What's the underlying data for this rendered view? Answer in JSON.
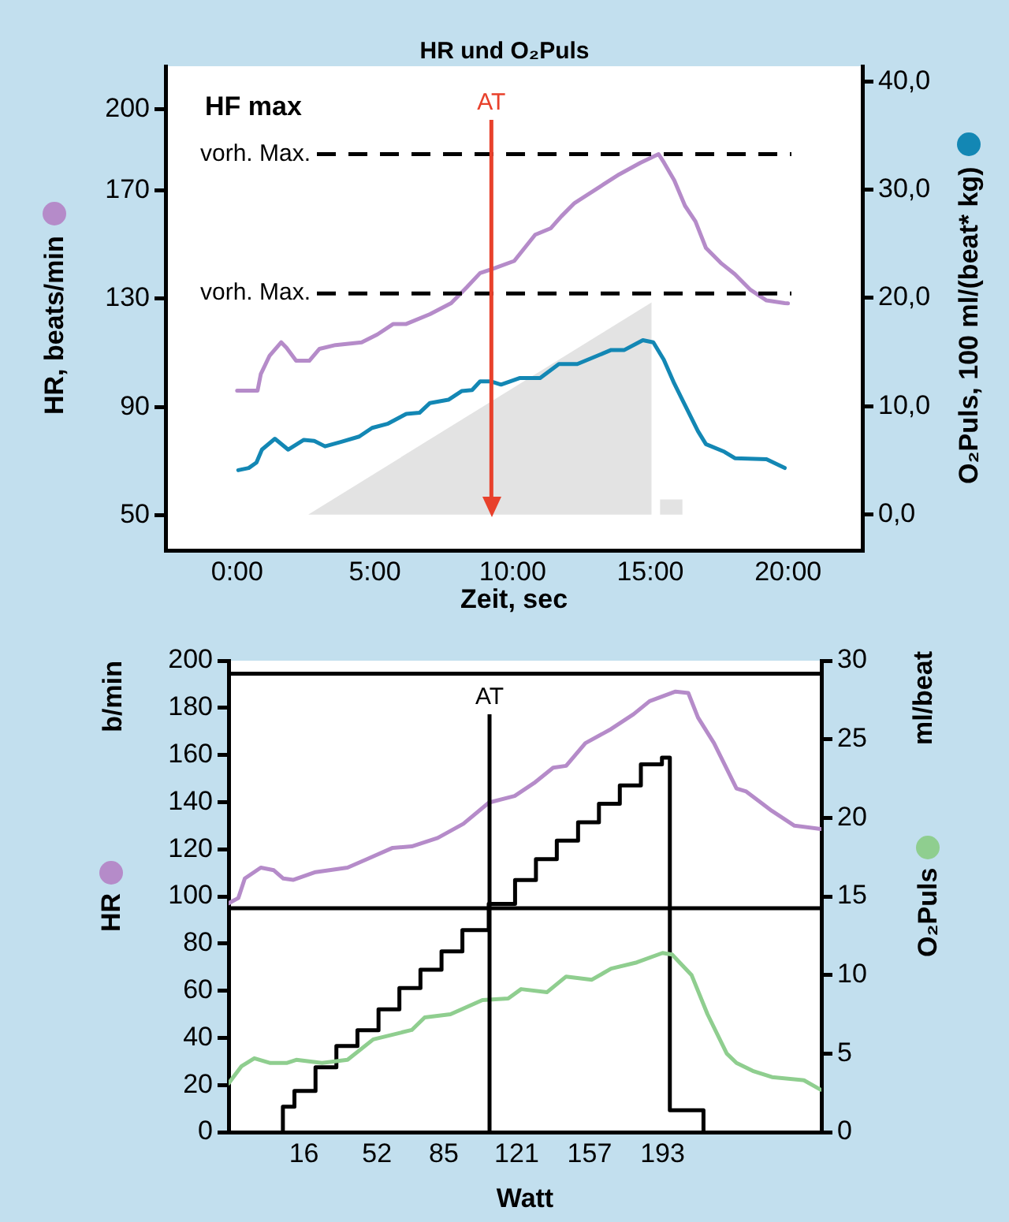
{
  "chart_data": [
    {
      "type": "line",
      "title": "HR und O₂Puls",
      "xlabel": "Zeit, sec",
      "ylabel": "HR, beats/min",
      "y2label": "O₂Puls, 100 ml/(beat* kg)",
      "annotations": [
        "HF max"
      ],
      "xlim": [
        -2.6,
        22.7
      ],
      "xticks": [
        {
          "value": 0,
          "label": "0:00"
        },
        {
          "value": 5,
          "label": "5:00"
        },
        {
          "value": 10,
          "label": "10:00"
        },
        {
          "value": 15,
          "label": "15:00"
        },
        {
          "value": 20,
          "label": "20:00"
        }
      ],
      "ylim": [
        37,
        216
      ],
      "yticks": [
        50,
        90,
        130,
        170,
        200
      ],
      "y2lim": [
        -3.3,
        41.4
      ],
      "y2ticks": [
        {
          "value": 0,
          "label": "0,0"
        },
        {
          "value": 10,
          "label": "10,0"
        },
        {
          "value": 20,
          "label": "20,0"
        },
        {
          "value": 30,
          "label": "30,0"
        },
        {
          "value": 40,
          "label": "40,0"
        }
      ],
      "series": [
        {
          "type": "area",
          "axis": "y2",
          "color": "#e3e3e3",
          "x": [
            2.58,
            15.05,
            15.05,
            15.2,
            15.35,
            15.35,
            16.17,
            16.17
          ],
          "values": [
            0,
            19.6,
            0,
            null,
            0,
            1.4,
            1.4,
            0
          ]
        },
        {
          "color": "#b58bc9",
          "x": [
            0,
            0.74,
            0.86,
            1.18,
            1.6,
            1.79,
            2.14,
            2.62,
            2.99,
            3.57,
            4.52,
            5.09,
            5.67,
            6.14,
            7.0,
            7.77,
            8.34,
            8.82,
            9.29,
            10.06,
            10.82,
            11.39,
            11.77,
            12.25,
            13.3,
            13.87,
            14.64,
            15.3,
            15.5,
            15.87,
            16.26,
            16.64,
            17.02,
            17.59,
            18.07,
            18.64,
            19.22,
            19.88,
            20
          ],
          "values": [
            96,
            96,
            102.2,
            109,
            113.9,
            111.9,
            107.1,
            107.1,
            111.5,
            112.9,
            113.9,
            116.8,
            120.7,
            120.7,
            124.3,
            128.4,
            134.3,
            139.5,
            141.1,
            144,
            153.7,
            156.1,
            160.5,
            165.4,
            172.3,
            176,
            180.3,
            183.5,
            180.3,
            173.8,
            164.4,
            158.6,
            148.8,
            143,
            139.1,
            133.3,
            129.4,
            128.4,
            128.3
          ]
        },
        {
          "axis": "y2",
          "color": "#1387b4",
          "x": [
            0.04,
            0.42,
            0.7,
            0.9,
            1.37,
            1.85,
            2.42,
            2.8,
            3.19,
            3.76,
            4.43,
            4.9,
            5.48,
            6.14,
            6.62,
            7.0,
            7.67,
            8.15,
            8.53,
            8.82,
            9.2,
            9.58,
            10.25,
            11.0,
            11.68,
            12.35,
            13.11,
            13.58,
            14.06,
            14.73,
            15.11,
            15.49,
            15.87,
            16.26,
            16.73,
            17.02,
            17.69,
            18.07,
            19.22,
            19.88
          ],
          "values": [
            4.1,
            4.3,
            4.8,
            6.0,
            7.0,
            6.0,
            6.9,
            6.8,
            6.3,
            6.7,
            7.2,
            8.0,
            8.4,
            9.3,
            9.4,
            10.3,
            10.6,
            11.4,
            11.5,
            12.3,
            12.3,
            12.0,
            12.6,
            12.6,
            13.9,
            13.9,
            14.7,
            15.2,
            15.2,
            16.1,
            15.9,
            14.3,
            12.1,
            10.1,
            7.7,
            6.5,
            5.8,
            5.2,
            5.1,
            4.3
          ]
        }
      ],
      "ref_lines": [
        {
          "axis": "y",
          "value": 183.5,
          "label": "vorh. Max.",
          "line_style": "dashed"
        },
        {
          "axis": "y",
          "value": 132,
          "label": "vorh. Max.",
          "line_style": "dashed"
        },
        {
          "axis": "x",
          "value": 9.23,
          "label": "AT",
          "color": "#e8412c"
        }
      ]
    },
    {
      "type": "line",
      "xlabel": "Watt",
      "ylabel": "HR",
      "y2label": "O₂Puls",
      "annotations": [
        "b/min",
        "ml/beat"
      ],
      "xlim": [
        -21.2,
        271.4
      ],
      "xticks": [
        16,
        52,
        85,
        121,
        157,
        193
      ],
      "ylim": [
        0,
        200
      ],
      "yticks": [
        0,
        20,
        40,
        60,
        80,
        100,
        120,
        140,
        160,
        180,
        200
      ],
      "y2lim": [
        0,
        30
      ],
      "y2ticks": [
        0,
        5,
        10,
        15,
        20,
        25,
        30
      ],
      "series": [
        {
          "type": "step",
          "color": "#000000",
          "x": [
            5.6,
            11.3,
            21.7,
            32,
            42.4,
            52.8,
            63.1,
            73.5,
            83.9,
            94.2,
            107.2,
            120.2,
            130.5,
            140.8,
            151.3,
            161.6,
            171.9,
            182.3,
            192.7,
            196.6,
            213.2,
            213.2
          ],
          "values": [
            0,
            10.8,
            17.5,
            27.5,
            36.5,
            43.2,
            52.1,
            61.1,
            68.9,
            76.7,
            85.7,
            96.8,
            106.9,
            115.8,
            123.7,
            131.4,
            139.3,
            147.1,
            156,
            158.9,
            9.3,
            0
          ]
        },
        {
          "color": "#b58bc9",
          "x": [
            -21.2,
            -16.4,
            -13.2,
            -5.3,
            1.1,
            5.8,
            10.6,
            21.7,
            37.5,
            47.1,
            59.8,
            69.2,
            82,
            94.7,
            107.3,
            120,
            129.6,
            139,
            145.4,
            154.9,
            167.6,
            178.7,
            186.6,
            199.4,
            205.7,
            210.5,
            218.4,
            229.5,
            234.3,
            246.9,
            258.1,
            271
          ],
          "values": [
            97.1,
            99.3,
            107.6,
            112.2,
            111.1,
            107.6,
            107,
            110.3,
            112.2,
            115.8,
            120.6,
            121.2,
            124.8,
            130.8,
            139.8,
            142.6,
            148.1,
            154.6,
            155.4,
            165,
            171,
            177.3,
            182.8,
            186.9,
            186.3,
            175.9,
            165,
            145.8,
            144.5,
            136.3,
            130,
            128.6
          ]
        },
        {
          "axis": "y2",
          "color": "#8fce8f",
          "x": [
            -21.2,
            -14.8,
            -8.5,
            -0.6,
            7.4,
            12.2,
            24.9,
            37.5,
            50.2,
            69.2,
            75.6,
            88.3,
            104.1,
            116.8,
            123.2,
            135.9,
            145.4,
            158.1,
            167.6,
            180.3,
            193,
            197.7,
            207.3,
            215.2,
            224.7,
            229.5,
            237.5,
            247,
            262.8,
            271
          ],
          "values": [
            3.1,
            4.2,
            4.7,
            4.4,
            4.4,
            4.6,
            4.4,
            4.6,
            5.9,
            6.5,
            7.3,
            7.5,
            8.4,
            8.5,
            9.1,
            8.9,
            9.9,
            9.7,
            10.4,
            10.8,
            11.4,
            11.3,
            10,
            7.5,
            5,
            4.4,
            3.9,
            3.5,
            3.3,
            2.7
          ]
        }
      ],
      "ref_lines": [
        {
          "axis": "y",
          "value": 194.5
        },
        {
          "axis": "y",
          "value": 95
        },
        {
          "axis": "x",
          "value": 107.6,
          "label": "AT"
        }
      ]
    }
  ]
}
